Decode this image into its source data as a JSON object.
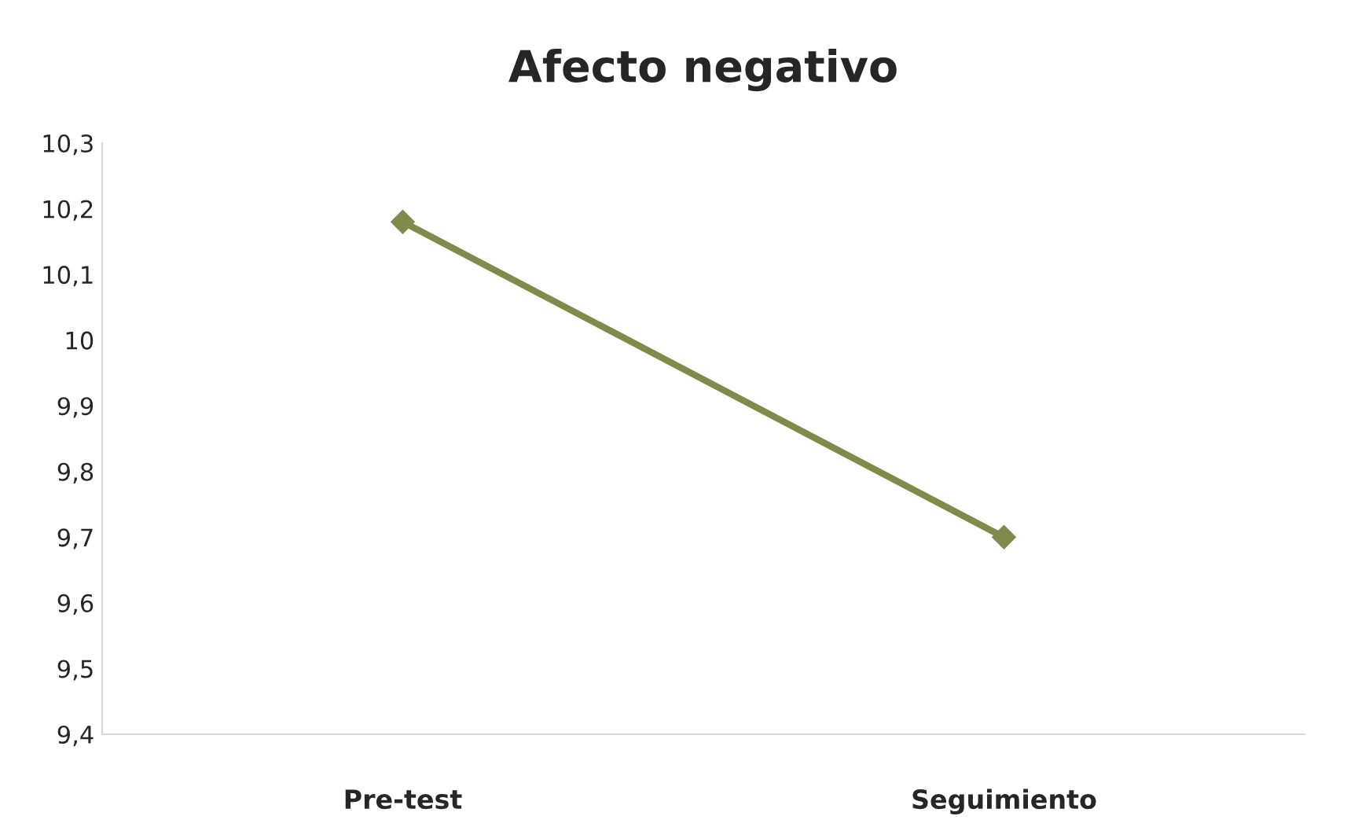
{
  "chart_data": {
    "type": "line",
    "title": "Afecto negativo",
    "categories": [
      "Pre-test",
      "Seguimiento"
    ],
    "series": [
      {
        "color": "#7f8b4a",
        "values": [
          10.18,
          9.7
        ]
      }
    ],
    "ylim": [
      9.4,
      10.3
    ],
    "yticks": [
      {
        "value": 9.4,
        "label": "9,4"
      },
      {
        "value": 9.5,
        "label": "9,5"
      },
      {
        "value": 9.6,
        "label": "9,6"
      },
      {
        "value": 9.7,
        "label": "9,7"
      },
      {
        "value": 9.8,
        "label": "9,8"
      },
      {
        "value": 9.9,
        "label": "9,9"
      },
      {
        "value": 10,
        "label": "10"
      },
      {
        "value": 10.1,
        "label": "10,1"
      },
      {
        "value": 10.2,
        "label": "10,2"
      },
      {
        "value": 10.3,
        "label": "10,3"
      }
    ],
    "grid": false,
    "marker": "diamond",
    "line_style": "solid"
  }
}
